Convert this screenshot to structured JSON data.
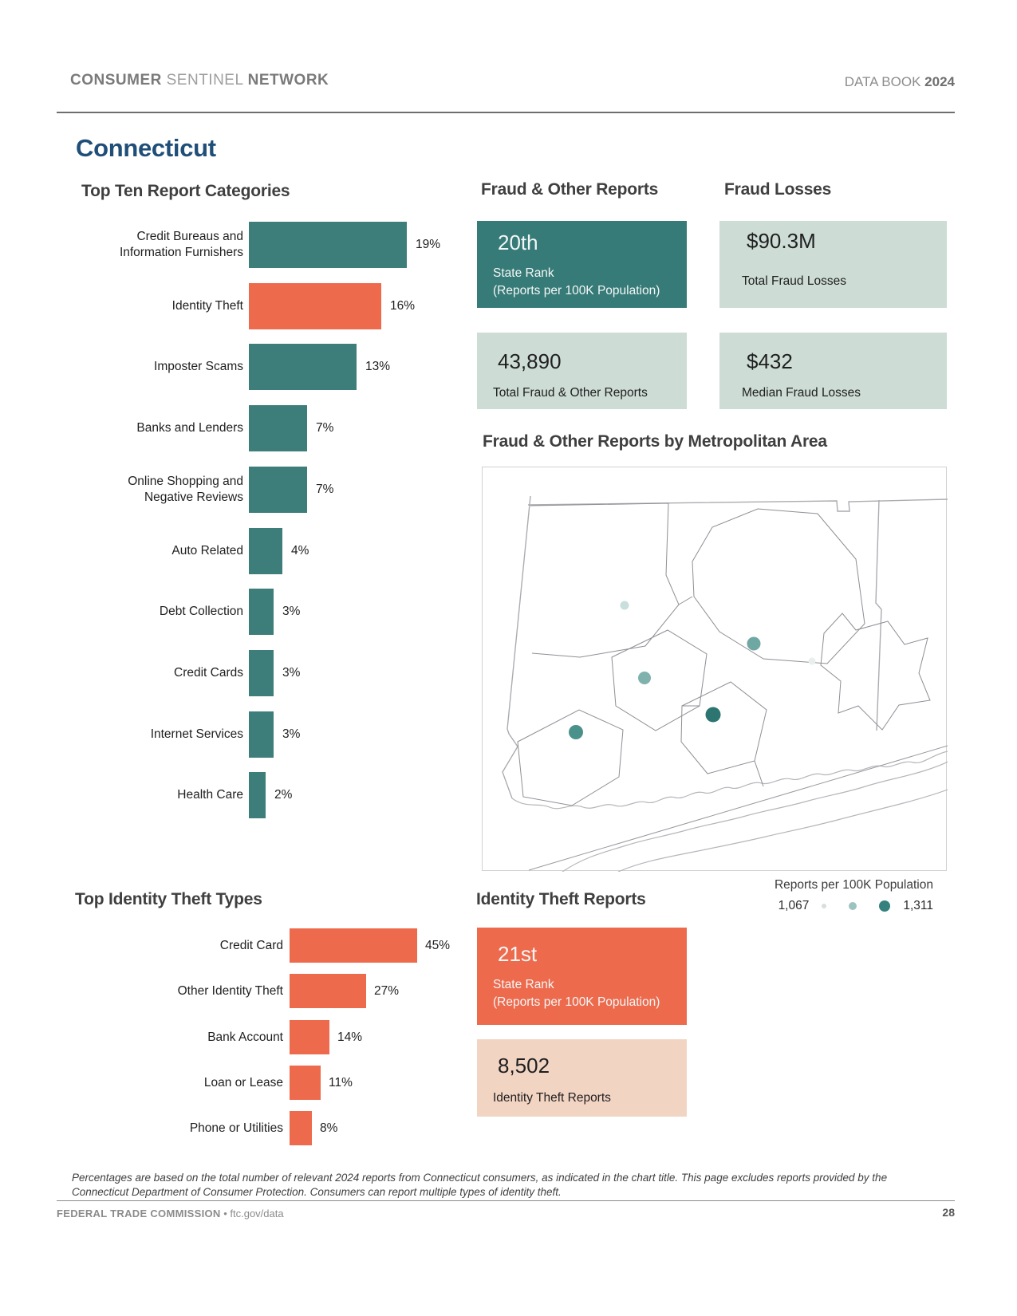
{
  "header": {
    "brand": [
      {
        "t": "CONSUMER"
      },
      {
        "t": "SENTINEL"
      },
      {
        "t": "NETWORK"
      }
    ],
    "right": [
      {
        "t": "DATA BOOK"
      },
      {
        "t": "2024"
      }
    ]
  },
  "page_title": "Connecticut",
  "colors": {
    "teal": "#3d7e7b",
    "orange": "#ee6a4d",
    "teal_box": "#377b78",
    "pale_green": "#cddcd5",
    "peach": "#f2d4c3",
    "navy_title": "#1f4e79"
  },
  "chart_data": [
    {
      "type": "bar",
      "orientation": "horizontal",
      "title": "Top Ten Report Categories",
      "unit": "%",
      "categories": [
        "Credit Bureaus and\nInformation Furnishers",
        "Identity Theft",
        "Imposter Scams",
        "Banks and Lenders",
        "Online Shopping and\nNegative Reviews",
        "Auto Related",
        "Debt Collection",
        "Credit Cards",
        "Internet Services",
        "Health Care"
      ],
      "values": [
        19,
        16,
        13,
        7,
        7,
        4,
        3,
        3,
        3,
        2
      ],
      "bar_colors": [
        "teal",
        "orange",
        "teal",
        "teal",
        "teal",
        "teal",
        "teal",
        "teal",
        "teal",
        "teal"
      ]
    },
    {
      "type": "bar",
      "orientation": "horizontal",
      "title": "Top Identity Theft Types",
      "unit": "%",
      "categories": [
        "Credit Card",
        "Other Identity Theft",
        "Bank Account",
        "Loan or Lease",
        "Phone or Utilities"
      ],
      "values": [
        45,
        27,
        14,
        11,
        8
      ],
      "bar_colors": [
        "orange",
        "orange",
        "orange",
        "orange",
        "orange"
      ]
    },
    {
      "type": "bubble_map",
      "title": "Fraud & Other Reports by Metropolitan Area",
      "legend_title": "Reports per 100K Population",
      "legend_min_label": "1,067",
      "legend_max_label": "1,311",
      "legend_range": [
        1067,
        1311
      ],
      "legend_dots": [
        {
          "d": 6,
          "color": "#d7dedc"
        },
        {
          "d": 10,
          "color": "#9dc3c1"
        },
        {
          "d": 14,
          "color": "#35817d"
        }
      ],
      "points": [
        {
          "x_pct": 30.7,
          "y_pct": 34.3,
          "d": 11,
          "color": "#c9dfdb"
        },
        {
          "x_pct": 58.5,
          "y_pct": 43.8,
          "d": 17,
          "color": "#6fa8a3"
        },
        {
          "x_pct": 71.0,
          "y_pct": 48.1,
          "d": 9,
          "color": "#e9efed"
        },
        {
          "x_pct": 35.0,
          "y_pct": 52.3,
          "d": 16,
          "color": "#7fb2ad"
        },
        {
          "x_pct": 49.7,
          "y_pct": 61.3,
          "d": 19,
          "color": "#2d7571"
        },
        {
          "x_pct": 20.2,
          "y_pct": 65.7,
          "d": 18,
          "color": "#4a918b"
        }
      ]
    }
  ],
  "fraud_reports": {
    "heading": "Fraud & Other Reports",
    "rank": "20th",
    "rank_label1": "State Rank",
    "rank_label2": "(Reports per 100K Population)",
    "total": "43,890",
    "total_label": "Total Fraud & Other Reports"
  },
  "fraud_losses": {
    "heading": "Fraud Losses",
    "total": "$90.3M",
    "total_label": "Total Fraud Losses",
    "median": "$432",
    "median_label": "Median Fraud Losses"
  },
  "identity_theft": {
    "heading": "Identity Theft Reports",
    "rank": "21st",
    "rank_label1": "State Rank",
    "rank_label2": "(Reports per 100K Population)",
    "total": "8,502",
    "total_label": "Identity Theft Reports"
  },
  "footnote": "Percentages are based on the total number of relevant 2024 reports from Connecticut consumers, as indicated in the chart title.  This page excludes reports provided by the Connecticut Department of Consumer Protection.  Consumers can report multiple types of identity theft.",
  "footer": {
    "org": "FEDERAL TRADE COMMISSION",
    "sep": "•",
    "link": "ftc.gov/data",
    "page_number": "28"
  }
}
